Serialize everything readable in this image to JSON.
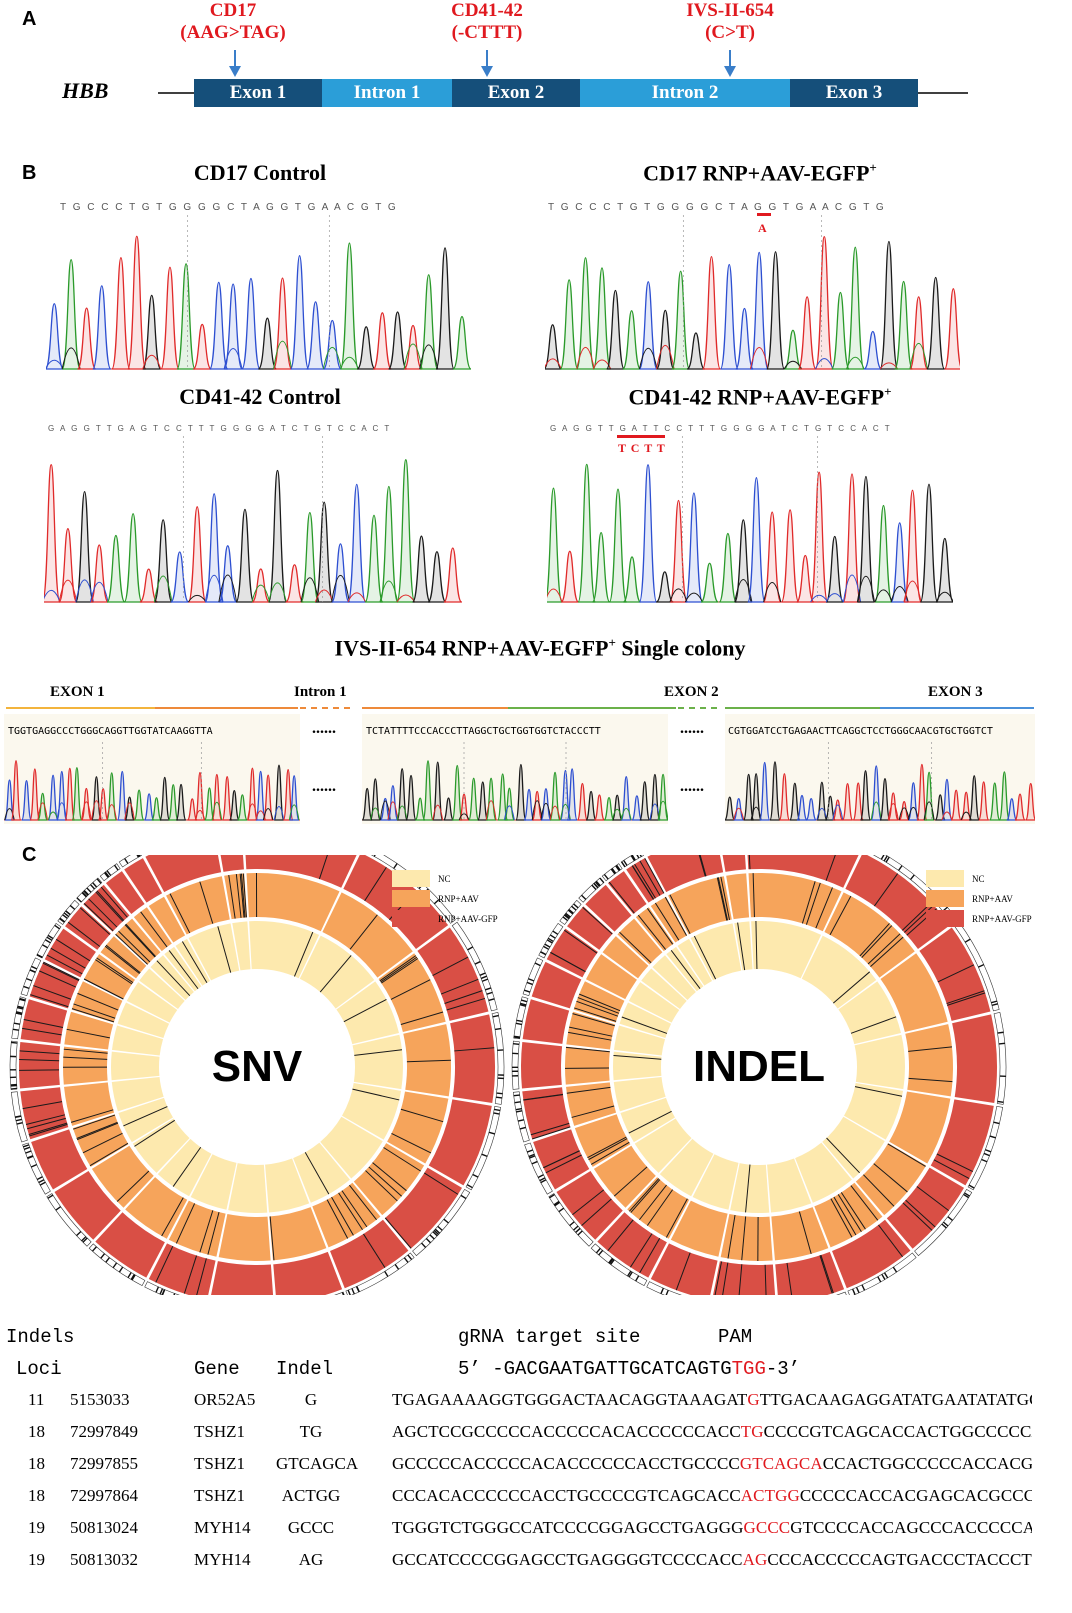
{
  "panel_a": {
    "letter": "A",
    "gene": "HBB",
    "mutations": [
      {
        "name": "CD17",
        "change": "(AAG>TAG)"
      },
      {
        "name": "CD41-42",
        "change": "(-CTTT)"
      },
      {
        "name": "IVS-II-654",
        "change": "(C>T)"
      }
    ],
    "segments": [
      "Exon 1",
      "Intron 1",
      "Exon 2",
      "Intron 2",
      "Exon 3"
    ],
    "colors": {
      "exon": "#154f7a",
      "intron": "#2b9ed8",
      "mutation": "#e0191f",
      "arrow": "#3a7ec9"
    }
  },
  "panel_b": {
    "letter": "B",
    "traces": [
      {
        "title": "CD17 Control",
        "seq": "T G C C C T G T G G G G C T A G G T G A A C G T G"
      },
      {
        "title_main": "CD17 RNP+AAV-EGFP",
        "title_sup": "+",
        "seq": "T G C C C T G T G G G G C T A G G T G A A C G T G",
        "mark": "A"
      },
      {
        "title": "CD41-42 Control",
        "seq": "G A G G T T G A G T C C T T T G G G G A T C T G T C C A C T"
      },
      {
        "title_main": "CD41-42 RNP+AAV-EGFP",
        "title_sup": "+",
        "seq": "G A G G T T G A T T C C T T T G G G G A T C T G T C C A C T",
        "mark": "T C T T"
      }
    ],
    "colony": {
      "title_main": "IVS-II-654 RNP+AAV-EGFP",
      "title_sup": "+",
      "title_tail": " Single colony",
      "regions": [
        "EXON 1",
        "Intron 1",
        "EXON 2",
        "EXON 3"
      ],
      "seqs": [
        "TGGTGAGGCCCTGGGCAGGTTGGTATCAAGGTTA",
        "TCTATTTTCCCACCCTTAGGCTGCTGGTGGTCTACCCTT",
        "CGTGGATCCTGAGAACTTCAGGCTCCTGGGCAACGTGCTGGTCT"
      ],
      "ellipsis": "......"
    }
  },
  "panel_c": {
    "letter": "C",
    "legend": [
      "NC",
      "RNP+AAV",
      "RNP+AAV-GFP"
    ],
    "legend_colors": [
      "#fde9ae",
      "#f6a45b",
      "#d94f45"
    ],
    "circles": [
      "SNV",
      "INDEL"
    ]
  },
  "table": {
    "title": "Indels",
    "grna_label": "gRNA target site",
    "pam_label": "PAM",
    "headers": [
      "Loci",
      "Gene",
      "Indel"
    ],
    "grna_prefix": "5’ -GACGAATGATTGCATCAGTG",
    "grna_pam": "TGG",
    "grna_suffix": "-3’",
    "rows": [
      {
        "chr": "11",
        "pos": "5153033",
        "gene": "OR52A5",
        "indel": "G",
        "pre": "TGAGAAAAGGTGGGACTAACAGGTAAAGAT",
        "hit": "G",
        "post": "TTGACAAGAGGATATGAATATATGGTGGTA"
      },
      {
        "chr": "18",
        "pos": "72997849",
        "gene": "TSHZ1",
        "indel": "TG",
        "pre": "AGCTCCGCCCCCACCCCCACACCCCCCACC",
        "hit": "TG",
        "post": "CCCCGTCAGCACCACTGGCCCCCACCACGA"
      },
      {
        "chr": "18",
        "pos": "72997855",
        "gene": "TSHZ1",
        "indel": "GTCAGCA",
        "pre": "GCCCCCACCCCCACACCCCCCACCTGCCCC",
        "hit": "GTCAGCA",
        "post": "CCACTGGCCCCCACCACGAGCACGC"
      },
      {
        "chr": "18",
        "pos": "72997864",
        "gene": "TSHZ1",
        "indel": "ACTGG",
        "pre": "CCCACACCCCCCACCTGCCCCGTCAGCACC",
        "hit": "ACTGG",
        "post": "CCCCCACCACGAGCACGCCCAGCACCA"
      },
      {
        "chr": "19",
        "pos": "50813024",
        "gene": "MYH14",
        "indel": "GCCC",
        "pre": "TGGGTCTGGGCCATCCCCGGAGCCTGAGGG",
        "hit": "GCCC",
        "post": "GTCCCCACCAGCCCACCCCCAGTGACC"
      },
      {
        "chr": "19",
        "pos": "50813032",
        "gene": "MYH14",
        "indel": "AG",
        "pre": "GCCATCCCCGGAGCCTGAGGGGTCCCCACC",
        "hit": "AG",
        "post": "CCCACCCCCAGTGACCCTACCCTGTCCCC"
      }
    ]
  }
}
